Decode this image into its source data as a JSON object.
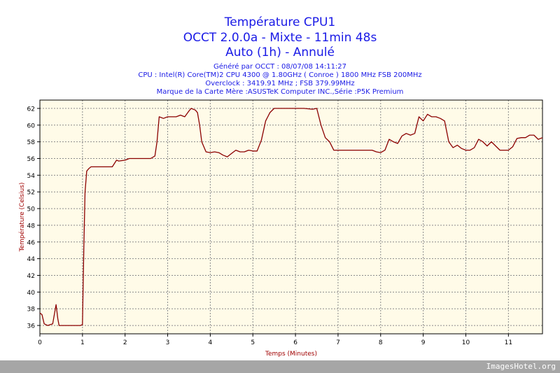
{
  "header": {
    "title_line1": "Température CPU1",
    "title_line2": "OCCT 2.0.0a - Mixte - 11min 48s",
    "title_line3": "Auto (1h) - Annulé",
    "sub_line1": "Généré par OCCT : 08/07/08 14:11:27",
    "sub_line2": "CPU : Intel(R) Core(TM)2 CPU 4300 @ 1.80GHz ( Conroe ) 1800 MHz FSB 200MHz",
    "sub_line3": "Overclock : 3419.91 MHz ; FSB 379.99MHz",
    "sub_line4": "Marque de la Carte Mère :ASUSTeK Computer INC.,Série :P5K Premium"
  },
  "footer": {
    "watermark": "ImagesHotel.org"
  },
  "colors": {
    "line": "#8b0000",
    "plot_bg": "#fffbe8",
    "title": "#1a1ae6",
    "axis_label": "#a00000"
  },
  "chart_data": {
    "type": "line",
    "xlabel": "Temps (Minutes)",
    "ylabel": "Température (Celsius)",
    "xlim": [
      0,
      11.8
    ],
    "ylim": [
      35,
      63
    ],
    "xticks": [
      0,
      1,
      2,
      3,
      4,
      5,
      6,
      7,
      8,
      9,
      10,
      11
    ],
    "yticks": [
      36,
      38,
      40,
      42,
      44,
      46,
      48,
      50,
      52,
      54,
      56,
      58,
      60,
      62
    ],
    "grid": true,
    "series": [
      {
        "x": [
          0,
          0.05,
          0.1,
          0.18,
          0.3,
          0.38,
          0.42,
          0.45,
          0.5,
          0.6,
          0.8,
          0.95,
          1.0,
          1.03,
          1.06,
          1.1,
          1.15,
          1.2,
          1.3,
          1.5,
          1.7,
          1.8,
          1.85,
          2.0,
          2.1,
          2.2,
          2.4,
          2.6,
          2.7,
          2.75,
          2.8,
          2.9,
          3.0,
          3.1,
          3.2,
          3.3,
          3.4,
          3.5,
          3.55,
          3.65,
          3.7,
          3.75,
          3.8,
          3.9,
          4.0,
          4.1,
          4.2,
          4.3,
          4.4,
          4.5,
          4.6,
          4.7,
          4.8,
          4.9,
          5.0,
          5.1,
          5.2,
          5.3,
          5.4,
          5.5,
          5.6,
          5.7,
          5.8,
          5.9,
          6.0,
          6.2,
          6.4,
          6.5,
          6.6,
          6.7,
          6.8,
          6.9,
          7.0,
          7.2,
          7.5,
          7.8,
          7.9,
          8.0,
          8.1,
          8.2,
          8.3,
          8.4,
          8.5,
          8.6,
          8.7,
          8.8,
          8.9,
          9.0,
          9.1,
          9.2,
          9.3,
          9.4,
          9.5,
          9.6,
          9.7,
          9.8,
          9.9,
          10.0,
          10.1,
          10.2,
          10.3,
          10.4,
          10.5,
          10.6,
          10.8,
          10.95,
          11.0,
          11.1,
          11.2,
          11.3,
          11.4,
          11.5,
          11.6,
          11.7,
          11.8
        ],
        "y": [
          37.5,
          37.3,
          36.2,
          36.0,
          36.2,
          38.5,
          36.8,
          36.0,
          36.0,
          36.0,
          36.0,
          36.0,
          36.1,
          45.0,
          52.0,
          54.5,
          54.8,
          55.0,
          55.0,
          55.0,
          55.0,
          55.8,
          55.7,
          55.8,
          56.0,
          56.0,
          56.0,
          56.0,
          56.3,
          58.0,
          61.0,
          60.8,
          61.0,
          61.0,
          61.0,
          61.2,
          61.0,
          61.7,
          62.0,
          61.8,
          61.5,
          60.0,
          58.0,
          56.8,
          56.7,
          56.8,
          56.7,
          56.4,
          56.2,
          56.6,
          57.0,
          56.8,
          56.8,
          57.0,
          56.9,
          56.9,
          58.2,
          60.5,
          61.5,
          62.0,
          62.0,
          62.0,
          62.0,
          62.0,
          62.0,
          62.0,
          61.9,
          62.0,
          60.0,
          58.5,
          58.0,
          57.0,
          57.0,
          57.0,
          57.0,
          57.0,
          56.8,
          56.7,
          57.0,
          58.3,
          58.0,
          57.8,
          58.7,
          59.0,
          58.8,
          59.0,
          61.0,
          60.5,
          61.3,
          61.0,
          61.0,
          60.8,
          60.5,
          58.0,
          57.3,
          57.6,
          57.2,
          57.0,
          57.0,
          57.3,
          58.3,
          58.0,
          57.5,
          58.0,
          57.0,
          57.0,
          57.0,
          57.4,
          58.4,
          58.5,
          58.5,
          58.8,
          58.8,
          58.3,
          58.5
        ]
      }
    ]
  }
}
